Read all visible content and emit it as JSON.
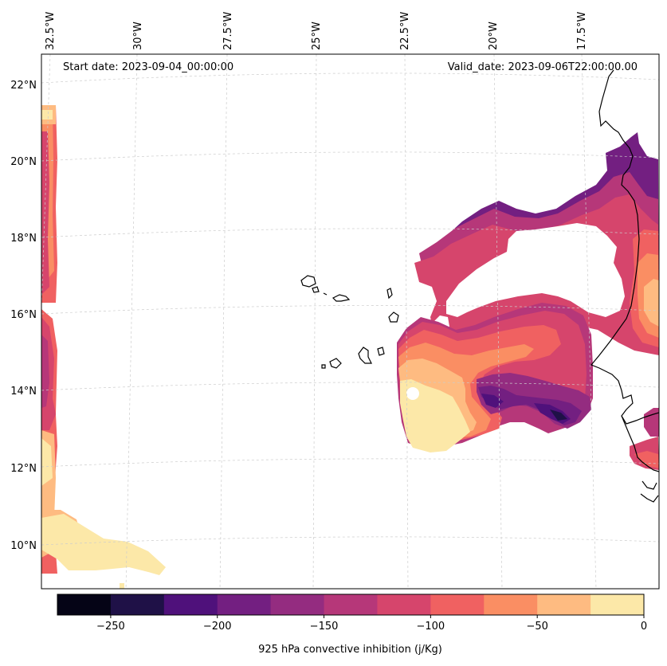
{
  "header": {
    "start_date": "Start date: 2023-09-04_00:00:00",
    "valid_date": "Valid_date: 2023-09-06T22:00:00.00"
  },
  "map": {
    "variable": "925 hPa convective inhibition (j/Kg)",
    "lon_labels": [
      "32.5°W",
      "30°W",
      "27.5°W",
      "25°W",
      "22.5°W",
      "20°W",
      "17.5°W"
    ],
    "lat_labels": [
      "22°N",
      "20°N",
      "18°N",
      "16°N",
      "14°N",
      "12°N",
      "10°N"
    ],
    "colors": {
      "coastline": "#000000",
      "gridline": "#cccccc"
    }
  },
  "colorbar": {
    "label": "925 hPa convective inhibition (j/Kg)",
    "levels": [
      -275,
      -250,
      -225,
      -200,
      -175,
      -150,
      -125,
      -100,
      -75,
      -50,
      -25,
      0
    ],
    "tick_labels": [
      "−250",
      "−200",
      "−150",
      "−100",
      "−50",
      "0"
    ],
    "bin_colors": [
      "#050416",
      "#1f1147",
      "#4f117b",
      "#731f81",
      "#942c80",
      "#b63779",
      "#d6456c",
      "#f06161",
      "#fa8e63",
      "#febb81",
      "#fce8a8"
    ]
  }
}
